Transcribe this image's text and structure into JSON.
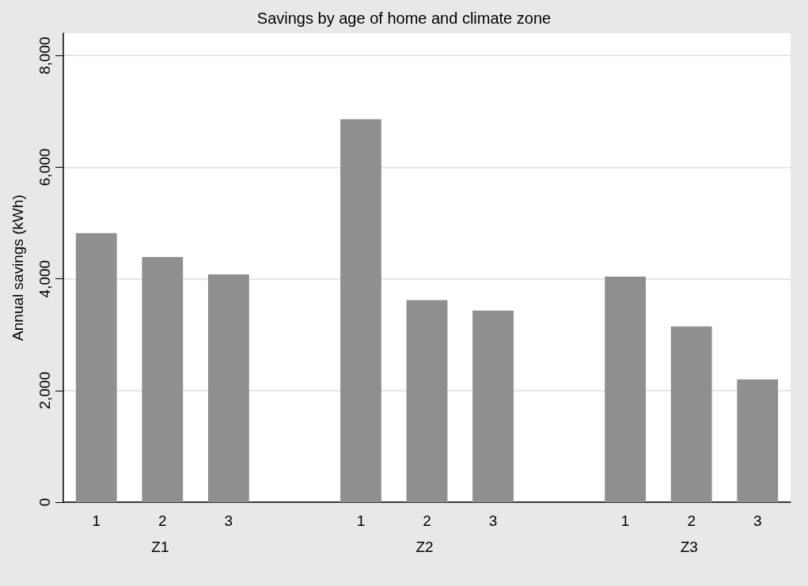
{
  "chart_data": {
    "type": "bar",
    "title": "Savings by age of home and climate zone",
    "ylabel": "Annual savings (kWh)",
    "categories": [
      "1",
      "2",
      "3",
      null,
      "1",
      "2",
      "3",
      null,
      "1",
      "2",
      "3"
    ],
    "values": [
      4820,
      4390,
      4080,
      null,
      6860,
      3620,
      3430,
      null,
      4040,
      3150,
      2200
    ],
    "color": "#8f8f8f",
    "ylim": [
      0,
      8400
    ],
    "yticks": [
      {
        "value": 0,
        "label": "0"
      },
      {
        "value": 2000,
        "label": "2,000"
      },
      {
        "value": 4000,
        "label": "4,000"
      },
      {
        "value": 6000,
        "label": "6,000"
      },
      {
        "value": 8000,
        "label": "8,000"
      }
    ],
    "grid": "y",
    "annotations": [
      "Z1",
      "Z2",
      "Z3"
    ]
  }
}
